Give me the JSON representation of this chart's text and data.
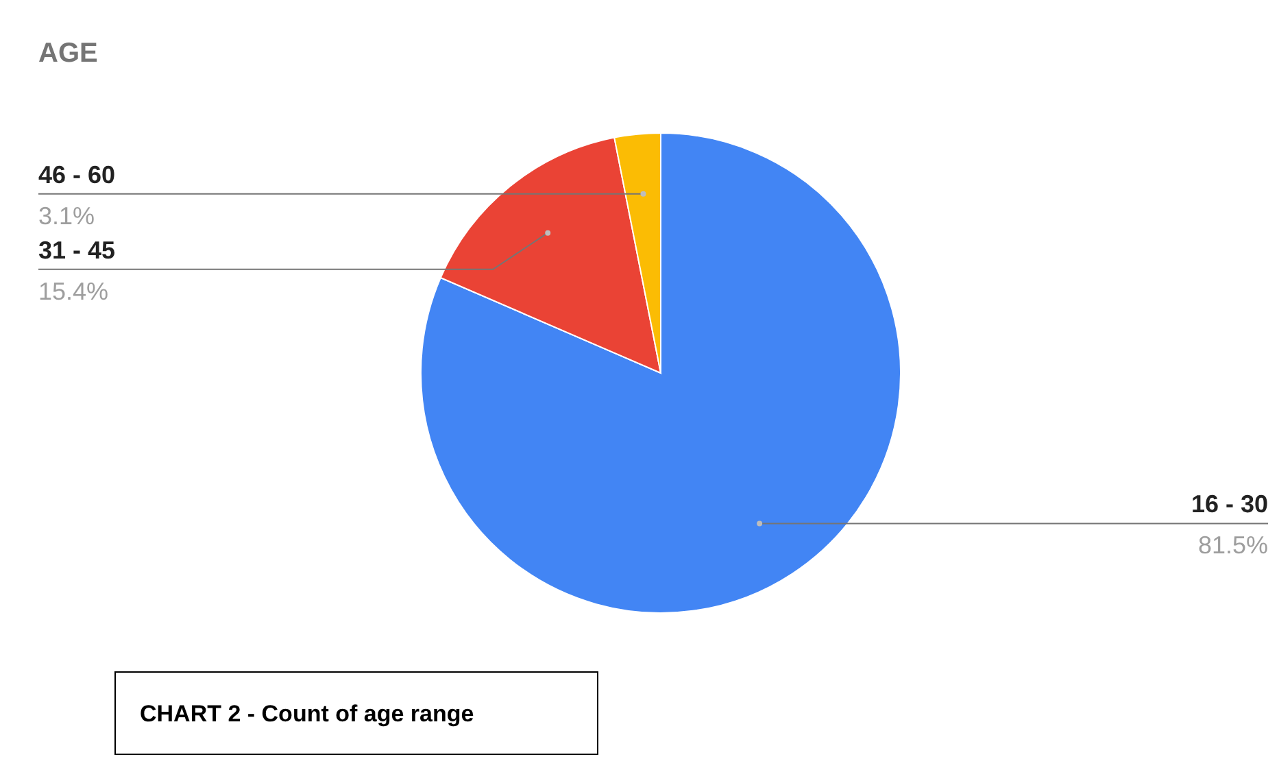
{
  "chart_data": {
    "type": "pie",
    "title": "AGE",
    "categories": [
      "16 - 30",
      "31 - 45",
      "46 - 60"
    ],
    "values": [
      81.5,
      15.4,
      3.1
    ],
    "colors": [
      "#4285f4",
      "#ea4335",
      "#fbbc04"
    ],
    "value_labels": [
      "81.5%",
      "15.4%",
      "3.1%"
    ],
    "legend": false,
    "annotations": [
      "CHART 2 - Count of age range"
    ]
  }
}
